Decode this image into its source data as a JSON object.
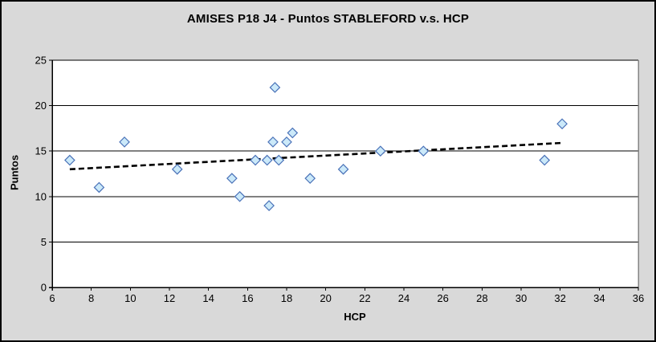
{
  "chart": {
    "title": "AMISES P18 J4 - Puntos STABLEFORD v.s. HCP",
    "x_axis_label": "HCP",
    "y_axis_label": "Puntos"
  },
  "colors": {
    "background": "#D9D9D9",
    "plot_background": "#FFFFFF",
    "gridline": "#000000",
    "axis": "#000000",
    "plot_border_right": "#848484",
    "marker_fill": "#CBE9F9",
    "marker_stroke": "#4A72B8",
    "trendline": "#000000"
  },
  "chart_data": {
    "type": "scatter",
    "title": "AMISES P18 J4 - Puntos STABLEFORD v.s. HCP",
    "xlabel": "HCP",
    "ylabel": "Puntos",
    "xlim": [
      6,
      36
    ],
    "xtick_step": 2,
    "ylim": [
      0,
      25
    ],
    "ytick_step": 5,
    "grid": true,
    "legend": "none",
    "marker_shape": "diamond",
    "points": [
      {
        "hcp": 6.9,
        "puntos": 14
      },
      {
        "hcp": 8.4,
        "puntos": 11
      },
      {
        "hcp": 9.7,
        "puntos": 16
      },
      {
        "hcp": 12.4,
        "puntos": 13
      },
      {
        "hcp": 15.2,
        "puntos": 12
      },
      {
        "hcp": 15.6,
        "puntos": 10
      },
      {
        "hcp": 16.4,
        "puntos": 14
      },
      {
        "hcp": 17.0,
        "puntos": 14
      },
      {
        "hcp": 17.1,
        "puntos": 9
      },
      {
        "hcp": 17.3,
        "puntos": 16
      },
      {
        "hcp": 17.4,
        "puntos": 22
      },
      {
        "hcp": 17.6,
        "puntos": 14
      },
      {
        "hcp": 18.0,
        "puntos": 16
      },
      {
        "hcp": 18.3,
        "puntos": 17
      },
      {
        "hcp": 19.2,
        "puntos": 12
      },
      {
        "hcp": 20.9,
        "puntos": 13
      },
      {
        "hcp": 22.8,
        "puntos": 15
      },
      {
        "hcp": 25.0,
        "puntos": 15
      },
      {
        "hcp": 31.2,
        "puntos": 14
      },
      {
        "hcp": 32.1,
        "puntos": 18
      }
    ],
    "trendline": {
      "style": "dashed",
      "x_start": 6.9,
      "y_start": 13.0,
      "x_end": 32.1,
      "y_end": 15.9
    }
  }
}
